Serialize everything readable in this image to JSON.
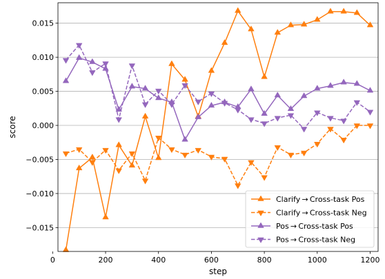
{
  "chart_data": {
    "type": "line",
    "title": "",
    "xlabel": "step",
    "ylabel": "score",
    "xlim": [
      20,
      1230
    ],
    "ylim": [
      -0.0185,
      0.018
    ],
    "xticks": [
      0,
      200,
      400,
      600,
      800,
      1000,
      1200
    ],
    "xtick_labels": [
      "0",
      "200",
      "400",
      "600",
      "800",
      "1000",
      "1200"
    ],
    "yticks": [
      -0.015,
      -0.01,
      -0.005,
      0.0,
      0.005,
      0.01,
      0.015
    ],
    "ytick_labels": [
      "−0.015",
      "−0.010",
      "−0.005",
      "0.000",
      "0.005",
      "0.010",
      "0.015"
    ],
    "grid": "horizontal",
    "legend_position": "lower-right",
    "x": [
      50,
      100,
      150,
      200,
      250,
      300,
      350,
      400,
      450,
      500,
      550,
      600,
      650,
      700,
      750,
      800,
      850,
      900,
      950,
      1000,
      1050,
      1100,
      1150,
      1200
    ],
    "series": [
      {
        "name": "Clarify → Cross-task Pos",
        "color": "#ff7f0e",
        "dash": "solid",
        "marker": "triangle-up",
        "values": [
          -0.0183,
          -0.0063,
          -0.0047,
          -0.0135,
          -0.0029,
          -0.0059,
          0.0013,
          -0.0048,
          0.009,
          0.0067,
          0.0013,
          0.008,
          0.0121,
          0.0168,
          0.0141,
          0.0071,
          0.0136,
          0.0147,
          0.0148,
          0.0155,
          0.0167,
          0.0167,
          0.0165,
          0.0147
        ]
      },
      {
        "name": "Clarify → Cross-task Neg",
        "color": "#ff7f0e",
        "dash": "dashed",
        "marker": "triangle-down",
        "values": [
          -0.0041,
          -0.0035,
          -0.0054,
          -0.0036,
          -0.0066,
          -0.0041,
          -0.0081,
          -0.0018,
          -0.0035,
          -0.0043,
          -0.0036,
          -0.0046,
          -0.0049,
          -0.0088,
          -0.0054,
          -0.0076,
          -0.0032,
          -0.0043,
          -0.004,
          -0.0027,
          -0.0005,
          -0.0021,
          0.0,
          0.0
        ]
      },
      {
        "name": "Pos → Cross-task Pos",
        "color": "#9467bd",
        "dash": "solid",
        "marker": "triangle-up",
        "values": [
          0.0065,
          0.0099,
          0.0093,
          0.0083,
          0.0023,
          0.0057,
          0.0054,
          0.004,
          0.0034,
          -0.0021,
          0.0012,
          0.0029,
          0.0034,
          0.0027,
          0.0053,
          0.0017,
          0.0044,
          0.0024,
          0.0043,
          0.0054,
          0.0058,
          0.0063,
          0.0061,
          0.0051
        ]
      },
      {
        "name": "Pos → Cross-task Neg",
        "color": "#9467bd",
        "dash": "dashed",
        "marker": "triangle-down",
        "values": [
          0.0096,
          0.0118,
          0.0078,
          0.0091,
          0.0009,
          0.0088,
          0.0031,
          0.0051,
          0.0031,
          0.0059,
          0.0035,
          0.0047,
          0.0033,
          0.0023,
          0.0009,
          0.0003,
          0.0011,
          0.0015,
          -0.0005,
          0.0019,
          0.0011,
          0.0007,
          0.0034,
          0.002
        ]
      }
    ]
  }
}
